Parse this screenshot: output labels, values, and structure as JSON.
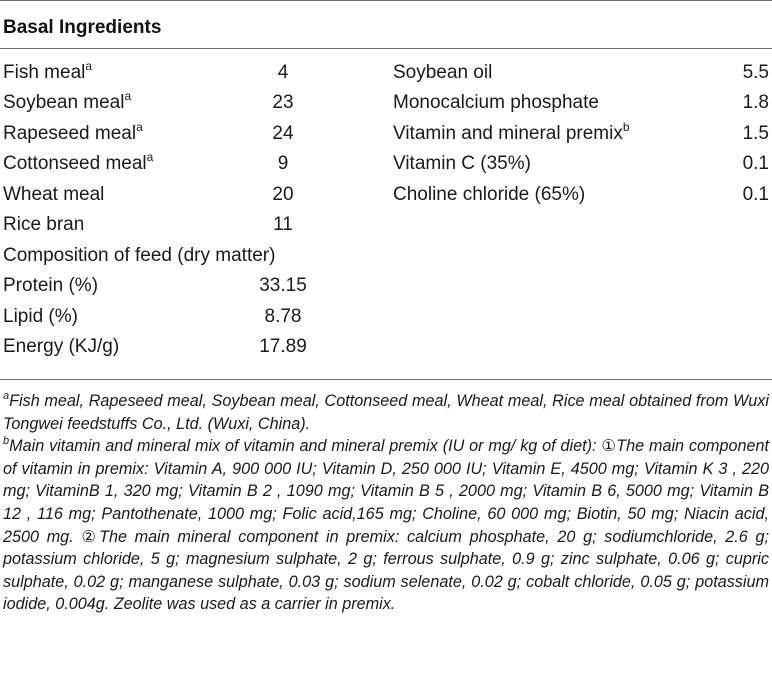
{
  "table": {
    "heading": "Basal Ingredients",
    "left_rows": [
      {
        "name": "Fish meal",
        "sup": "a",
        "value": "4"
      },
      {
        "name": "Soybean meal",
        "sup": "a",
        "value": "23"
      },
      {
        "name": "Rapeseed meal",
        "sup": "a",
        "value": "24"
      },
      {
        "name": "Cottonseed meal",
        "sup": "a",
        "value": "9"
      },
      {
        "name": "Wheat meal",
        "sup": "",
        "value": "20"
      },
      {
        "name": "Rice bran",
        "sup": "",
        "value": "11"
      }
    ],
    "composition_label": "Composition of feed (dry matter)",
    "composition_rows": [
      {
        "name": "Protein (%)",
        "value": "33.15"
      },
      {
        "name": "Lipid (%)",
        "value": "8.78"
      },
      {
        "name": "Energy (KJ/g)",
        "value": "17.89"
      }
    ],
    "right_rows": [
      {
        "name": "Soybean oil",
        "sup": "",
        "value": "5.5"
      },
      {
        "name": "Monocalcium phosphate",
        "sup": "",
        "value": "1.8"
      },
      {
        "name": "Vitamin and mineral premix",
        "sup": "b",
        "value": "1.5"
      },
      {
        "name": "Vitamin C (35%)",
        "sup": "",
        "value": "0.1"
      },
      {
        "name": "Choline chloride (65%)",
        "sup": "",
        "value": "0.1"
      }
    ]
  },
  "footnotes": [
    {
      "mark": "a",
      "text": "Fish meal, Rapeseed meal, Soybean meal, Cottonseed meal, Wheat meal, Rice meal obtained from Wuxi Tongwei feedstuffs Co., Ltd. (Wuxi, China)."
    },
    {
      "mark": "b",
      "text": "Main vitamin and mineral mix of vitamin and mineral premix (IU or mg/ kg of diet): ①The main component of vitamin in premix: Vitamin A, 900 000 IU; Vitamin D, 250 000 IU; Vitamin E, 4500 mg; Vitamin K 3 , 220 mg; VitaminB 1, 320 mg; Vitamin B 2 , 1090 mg; Vitamin B 5 , 2000 mg; Vitamin B 6, 5000 mg; Vitamin B 12 , 116 mg; Pantothenate, 1000 mg; Folic acid,165 mg; Choline, 60 000 mg; Biotin, 50 mg; Niacin acid, 2500 mg. ②The main mineral component in premix: calcium phosphate, 20 g; sodiumchloride, 2.6 g; potassium chloride, 5 g; magnesium sulphate, 2 g; ferrous sulphate, 0.9 g; zinc sulphate, 0.06 g; cupric sulphate, 0.02 g; manganese sulphate, 0.03 g; sodium selenate, 0.02 g; cobalt chloride, 0.05 g; potassium iodide, 0.004g. Zeolite was used as a carrier in premix."
    }
  ]
}
